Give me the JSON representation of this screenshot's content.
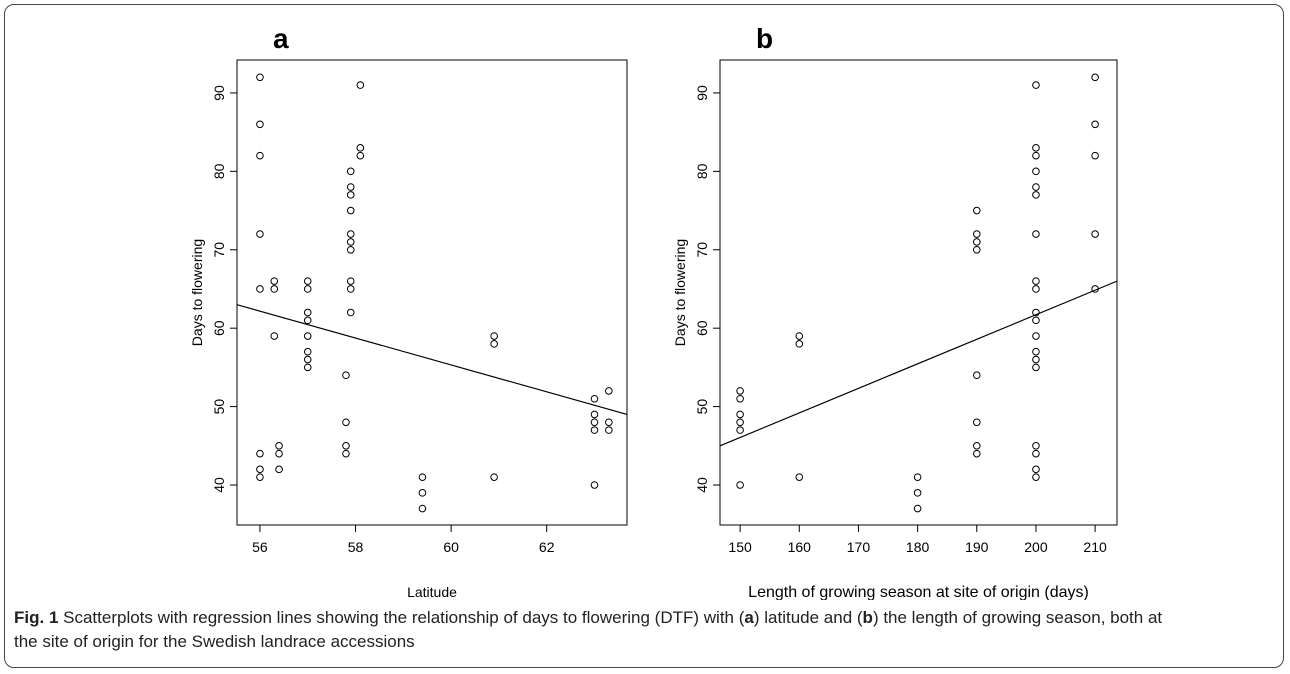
{
  "chart_data": [
    {
      "type": "scatter",
      "panel_label": "a",
      "xlabel": "Latitude",
      "ylabel": "Days to flowering",
      "x": [
        56.0,
        56.0,
        56.0,
        56.0,
        56.0,
        56.0,
        56.0,
        56.0,
        56.3,
        56.3,
        56.3,
        56.4,
        56.4,
        56.4,
        57.0,
        57.0,
        57.0,
        57.0,
        57.0,
        57.0,
        57.0,
        57.0,
        57.8,
        57.8,
        57.8,
        57.8,
        57.9,
        57.9,
        57.9,
        57.9,
        57.9,
        57.9,
        57.9,
        57.9,
        57.9,
        57.9,
        58.1,
        58.1,
        58.1,
        59.4,
        59.4,
        59.4,
        60.9,
        60.9,
        60.9,
        63.0,
        63.0,
        63.0,
        63.0,
        63.0,
        63.3,
        63.3,
        63.3
      ],
      "y": [
        92,
        86,
        82,
        72,
        65,
        44,
        42,
        41,
        66,
        65,
        59,
        45,
        44,
        42,
        66,
        65,
        62,
        61,
        59,
        57,
        56,
        55,
        54,
        48,
        45,
        44,
        80,
        78,
        77,
        75,
        72,
        71,
        70,
        66,
        65,
        62,
        91,
        83,
        82,
        41,
        39,
        37,
        59,
        58,
        41,
        51,
        49,
        48,
        47,
        40,
        52,
        48,
        47
      ],
      "fit": {
        "x": [
          55.52,
          63.68
        ],
        "y": [
          63,
          49
        ]
      },
      "color": "#000000",
      "xlim": [
        55.52,
        63.68
      ],
      "ylim": [
        34.9,
        94.2
      ],
      "xticks": [
        56,
        58,
        60,
        62
      ],
      "yticks": [
        40,
        50,
        60,
        70,
        80,
        90
      ]
    },
    {
      "type": "scatter",
      "panel_label": "b",
      "xlabel": "Length of growing season at site of origin (days)",
      "ylabel": "Days to flowering",
      "x": [
        150,
        150,
        150,
        150,
        150,
        150,
        160,
        160,
        160,
        180,
        180,
        180,
        190,
        190,
        190,
        190,
        190,
        190,
        190,
        190,
        200,
        200,
        200,
        200,
        200,
        200,
        200,
        200,
        200,
        200,
        200,
        200,
        200,
        200,
        200,
        200,
        200,
        200,
        200,
        210,
        210,
        210,
        210,
        210
      ],
      "y": [
        52,
        51,
        49,
        48,
        47,
        40,
        59,
        58,
        41,
        41,
        39,
        37,
        75,
        72,
        71,
        70,
        54,
        48,
        45,
        44,
        91,
        83,
        82,
        80,
        78,
        77,
        72,
        66,
        65,
        62,
        61,
        59,
        57,
        56,
        55,
        45,
        44,
        42,
        41,
        92,
        86,
        82,
        72,
        65
      ],
      "fit": {
        "x": [
          146.6,
          213.7
        ],
        "y": [
          45,
          66
        ]
      },
      "color": "#000000",
      "xlim": [
        146.6,
        213.7
      ],
      "ylim": [
        34.9,
        94.2
      ],
      "xticks": [
        150,
        160,
        170,
        180,
        190,
        200,
        210
      ],
      "yticks": [
        40,
        50,
        60,
        70,
        80,
        90
      ]
    }
  ],
  "caption": {
    "label": "Fig. 1",
    "parts": [
      "Scatterplots with regression lines showing the relationship of days to flowering (DTF) with (",
      "a",
      ") latitude and (",
      "b",
      ") the length of growing season, both at the site of origin for the Swedish landrace accessions"
    ]
  }
}
